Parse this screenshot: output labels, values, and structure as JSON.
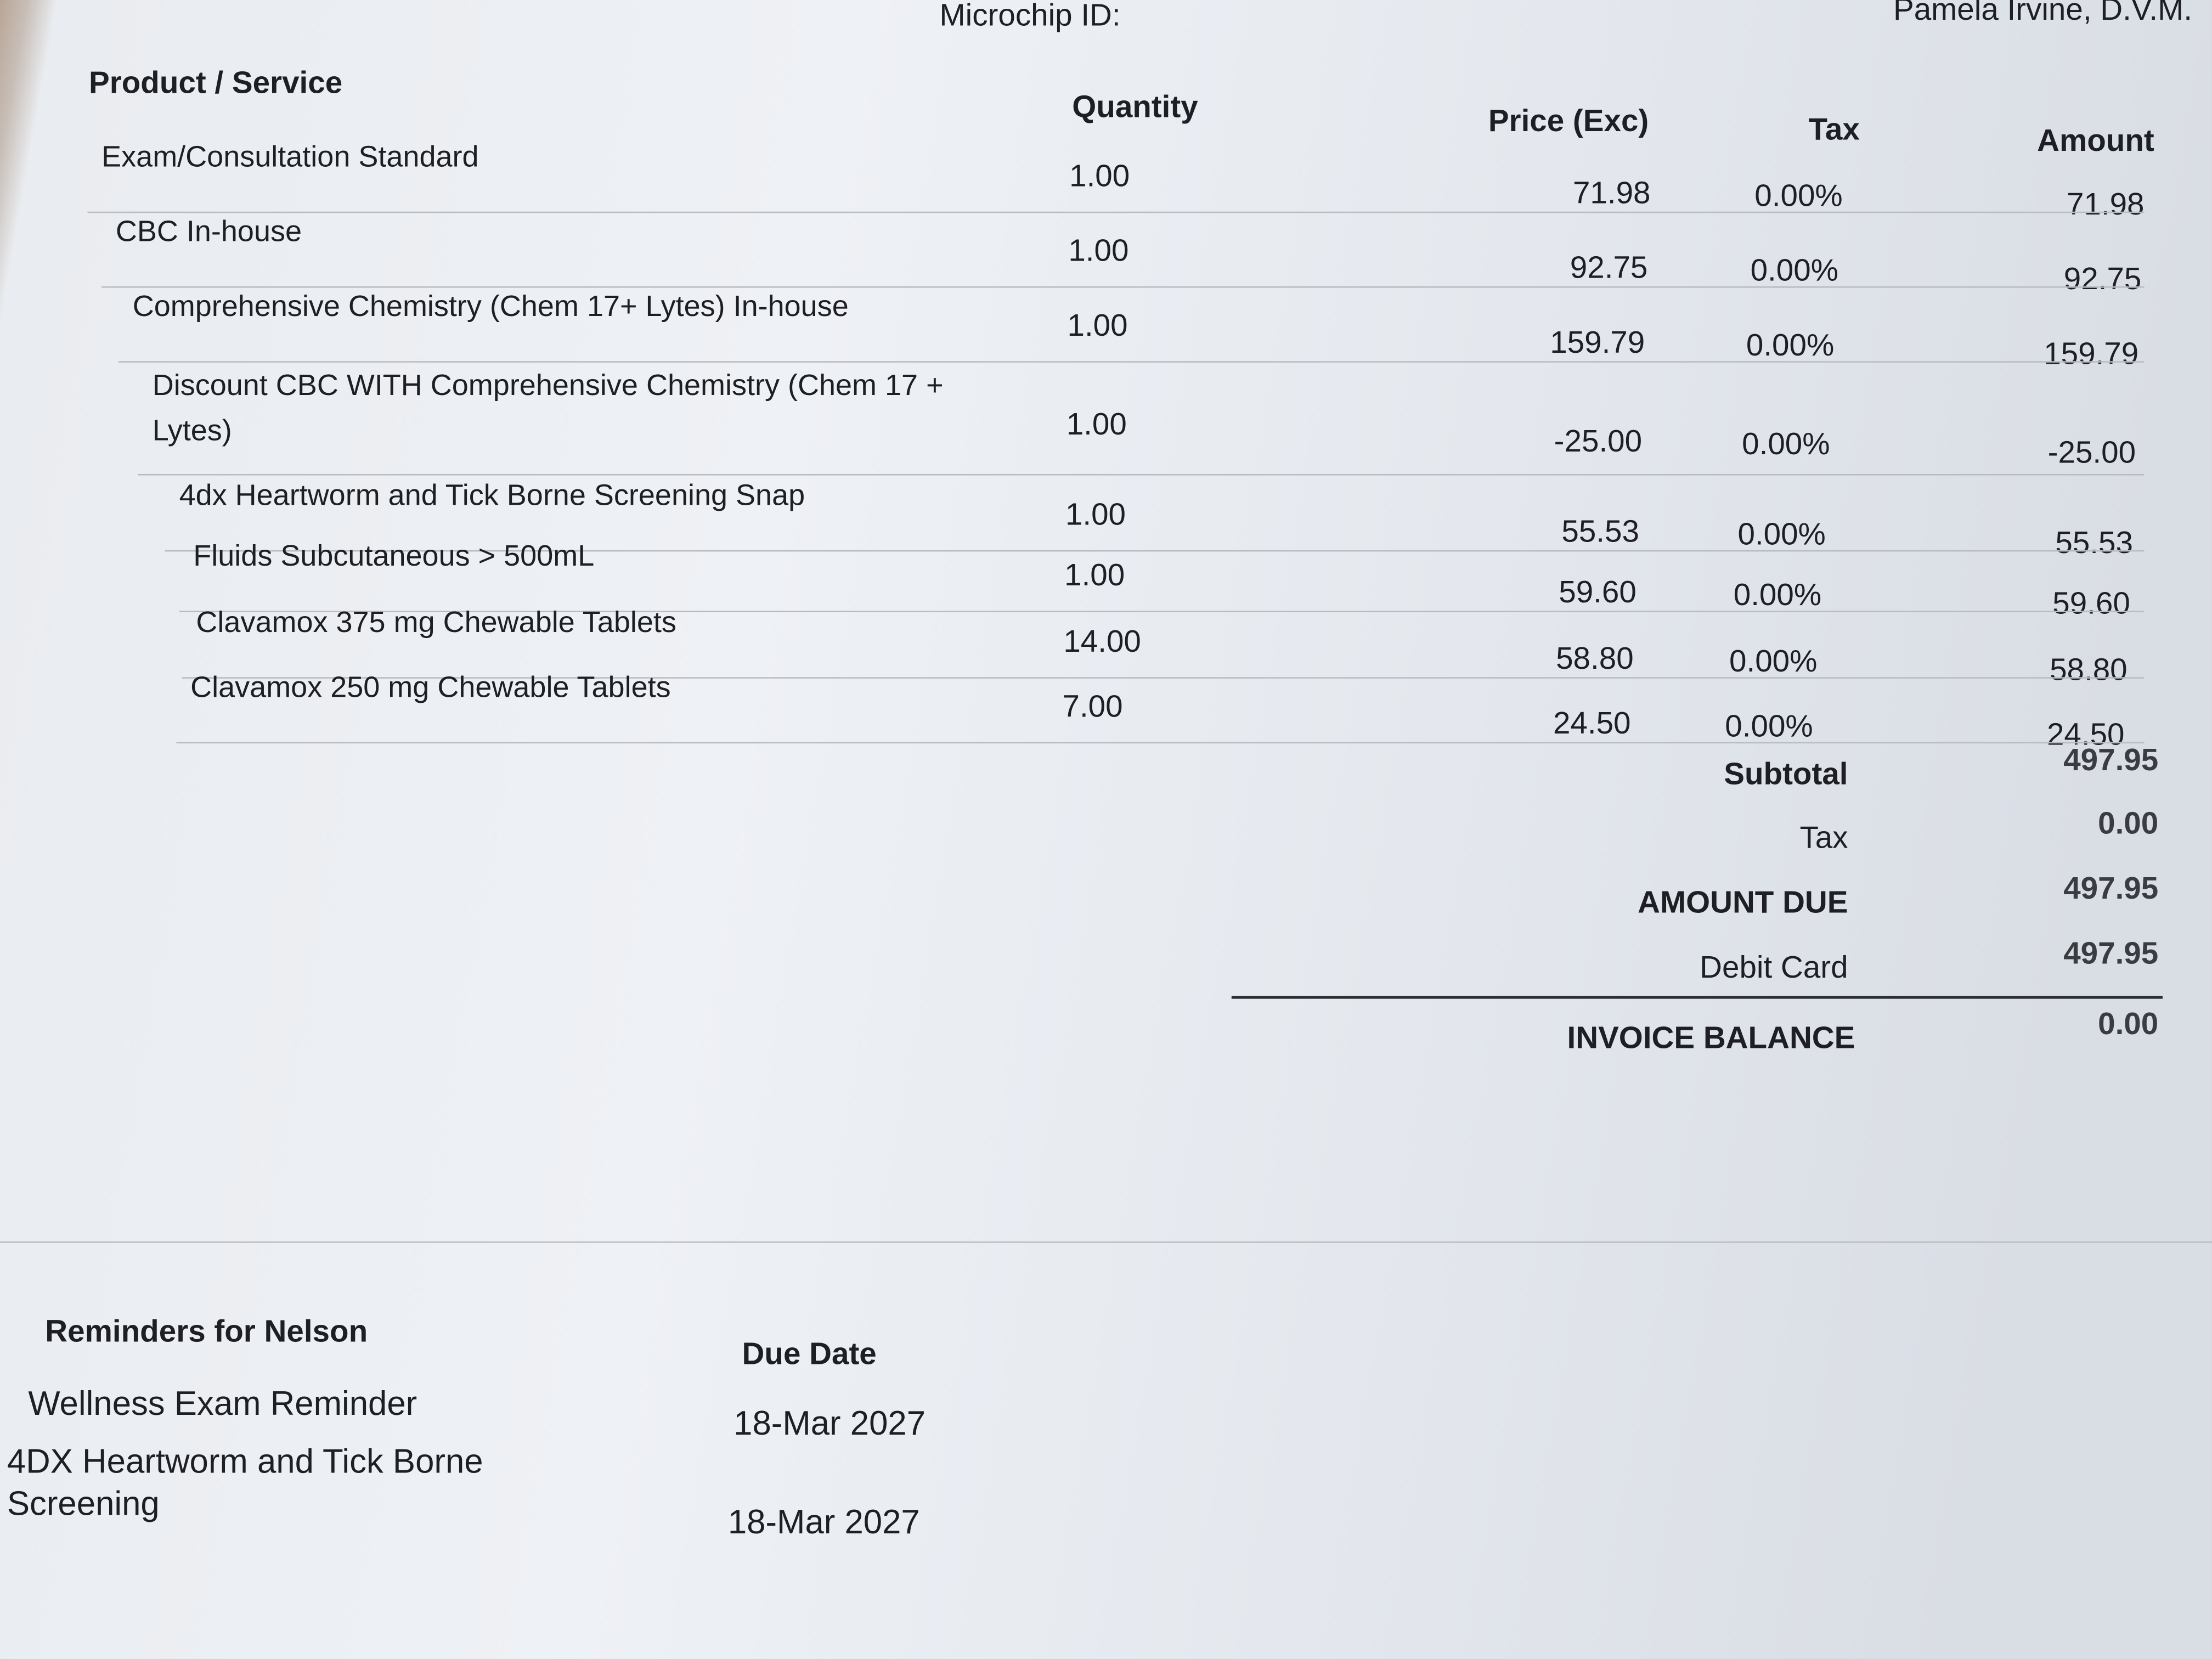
{
  "header": {
    "microchip_label": "Microchip ID:",
    "provider": "Pamela Irvine, D.V.M."
  },
  "table": {
    "columns": [
      "Product / Service",
      "Quantity",
      "Price (Exc)",
      "Tax",
      "Amount"
    ],
    "rows": [
      [
        "Exam/Consultation Standard",
        "1.00",
        "71.98",
        "0.00%",
        "71.98"
      ],
      [
        "CBC In-house",
        "1.00",
        "92.75",
        "0.00%",
        "92.75"
      ],
      [
        "Comprehensive Chemistry (Chem 17+ Lytes) In-house",
        "1.00",
        "159.79",
        "0.00%",
        "159.79"
      ],
      [
        "Discount CBC WITH Comprehensive Chemistry (Chem 17 + Lytes)",
        "1.00",
        "-25.00",
        "0.00%",
        "-25.00"
      ],
      [
        "4dx Heartworm and Tick Borne Screening Snap",
        "1.00",
        "55.53",
        "0.00%",
        "55.53"
      ],
      [
        "Fluids Subcutaneous > 500mL",
        "1.00",
        "59.60",
        "0.00%",
        "59.60"
      ],
      [
        "Clavamox 375 mg Chewable Tablets",
        "14.00",
        "58.80",
        "0.00%",
        "58.80"
      ],
      [
        "Clavamox 250 mg Chewable Tablets",
        "7.00",
        "24.50",
        "0.00%",
        "24.50"
      ]
    ]
  },
  "totals": [
    {
      "label": "Subtotal",
      "value": "497.95"
    },
    {
      "label": "Tax",
      "value": "0.00"
    },
    {
      "label": "AMOUNT DUE",
      "value": "497.95"
    },
    {
      "label": "Debit Card",
      "value": "497.95"
    },
    {
      "label": "INVOICE BALANCE",
      "value": "0.00"
    }
  ],
  "reminders": {
    "title": "Reminders for Nelson",
    "due_date_header": "Due Date",
    "rows": [
      [
        "Wellness Exam Reminder",
        "18-Mar 2027"
      ],
      [
        "4DX Heartworm and Tick Borne Screening",
        "18-Mar 2027"
      ]
    ]
  }
}
